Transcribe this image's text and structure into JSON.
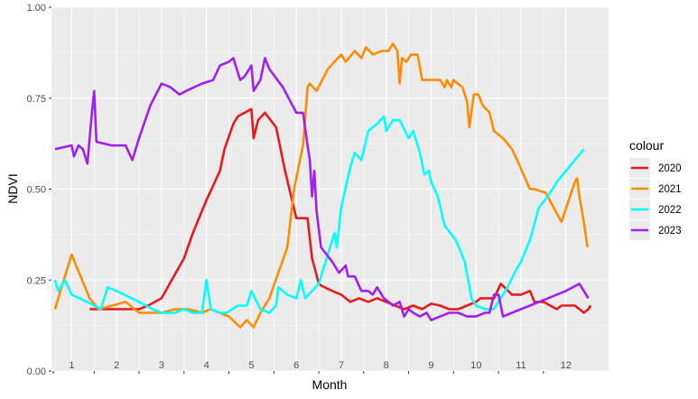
{
  "chart_data": {
    "type": "line",
    "xlabel": "Month",
    "ylabel": "NDVI",
    "xlim": [
      0.55,
      12.95
    ],
    "ylim": [
      0,
      1
    ],
    "y_ticks": [
      0.0,
      0.25,
      0.5,
      0.75,
      1.0
    ],
    "y_tick_labels": [
      "0.00",
      "0.25",
      "0.50",
      "0.75",
      "1.00"
    ],
    "x_ticks": [
      1,
      2,
      3,
      4,
      5,
      6,
      7,
      8,
      9,
      10,
      11,
      12
    ],
    "x_tick_labels": [
      "1",
      "2",
      "3",
      "4",
      "5",
      "6",
      "7",
      "8",
      "9",
      "10",
      "11",
      "12"
    ],
    "grid": true,
    "legend": {
      "title": "colour",
      "position": "right"
    },
    "series": [
      {
        "name": "2020",
        "color": "#E41A1C",
        "points": [
          [
            1.4,
            0.17
          ],
          [
            2.0,
            0.17
          ],
          [
            2.5,
            0.17
          ],
          [
            2.7,
            0.18
          ],
          [
            3.0,
            0.2
          ],
          [
            3.5,
            0.31
          ],
          [
            3.7,
            0.38
          ],
          [
            4.0,
            0.47
          ],
          [
            4.3,
            0.55
          ],
          [
            4.4,
            0.61
          ],
          [
            4.6,
            0.68
          ],
          [
            4.7,
            0.7
          ],
          [
            5.0,
            0.72
          ],
          [
            5.05,
            0.64
          ],
          [
            5.15,
            0.69
          ],
          [
            5.3,
            0.71
          ],
          [
            5.55,
            0.67
          ],
          [
            5.75,
            0.55
          ],
          [
            6.0,
            0.42
          ],
          [
            6.25,
            0.42
          ],
          [
            6.35,
            0.31
          ],
          [
            6.5,
            0.24
          ],
          [
            6.55,
            0.235
          ],
          [
            6.8,
            0.22
          ],
          [
            7.0,
            0.21
          ],
          [
            7.2,
            0.19
          ],
          [
            7.4,
            0.2
          ],
          [
            7.6,
            0.19
          ],
          [
            7.8,
            0.2
          ],
          [
            8.0,
            0.19
          ],
          [
            8.2,
            0.18
          ],
          [
            8.4,
            0.17
          ],
          [
            8.6,
            0.18
          ],
          [
            8.8,
            0.17
          ],
          [
            9.0,
            0.185
          ],
          [
            9.2,
            0.18
          ],
          [
            9.4,
            0.17
          ],
          [
            9.6,
            0.17
          ],
          [
            9.8,
            0.18
          ],
          [
            10.0,
            0.19
          ],
          [
            10.1,
            0.2
          ],
          [
            10.25,
            0.2
          ],
          [
            10.4,
            0.2
          ],
          [
            10.55,
            0.24
          ],
          [
            10.8,
            0.21
          ],
          [
            11.0,
            0.21
          ],
          [
            11.2,
            0.22
          ],
          [
            11.3,
            0.19
          ],
          [
            11.5,
            0.19
          ],
          [
            11.65,
            0.18
          ],
          [
            11.8,
            0.17
          ],
          [
            11.9,
            0.18
          ],
          [
            12.0,
            0.18
          ],
          [
            12.2,
            0.18
          ],
          [
            12.3,
            0.17
          ],
          [
            12.4,
            0.16
          ],
          [
            12.5,
            0.17
          ],
          [
            12.55,
            0.18
          ]
        ]
      },
      {
        "name": "2021",
        "color": "#FF8C00",
        "points": [
          [
            0.63,
            0.17
          ],
          [
            0.8,
            0.24
          ],
          [
            1.0,
            0.32
          ],
          [
            1.2,
            0.26
          ],
          [
            1.4,
            0.2
          ],
          [
            1.6,
            0.17
          ],
          [
            1.9,
            0.18
          ],
          [
            2.2,
            0.19
          ],
          [
            2.5,
            0.16
          ],
          [
            2.8,
            0.16
          ],
          [
            3.0,
            0.16
          ],
          [
            3.3,
            0.17
          ],
          [
            3.6,
            0.17
          ],
          [
            3.9,
            0.16
          ],
          [
            4.1,
            0.17
          ],
          [
            4.3,
            0.16
          ],
          [
            4.5,
            0.15
          ],
          [
            4.75,
            0.12
          ],
          [
            4.9,
            0.14
          ],
          [
            5.05,
            0.12
          ],
          [
            5.2,
            0.16
          ],
          [
            5.4,
            0.2
          ],
          [
            5.6,
            0.27
          ],
          [
            5.8,
            0.34
          ],
          [
            5.95,
            0.5
          ],
          [
            6.15,
            0.62
          ],
          [
            6.25,
            0.78
          ],
          [
            6.3,
            0.79
          ],
          [
            6.45,
            0.77
          ],
          [
            6.7,
            0.83
          ],
          [
            7.0,
            0.87
          ],
          [
            7.1,
            0.85
          ],
          [
            7.3,
            0.88
          ],
          [
            7.45,
            0.86
          ],
          [
            7.55,
            0.89
          ],
          [
            7.7,
            0.87
          ],
          [
            7.9,
            0.88
          ],
          [
            8.05,
            0.88
          ],
          [
            8.15,
            0.9
          ],
          [
            8.25,
            0.88
          ],
          [
            8.3,
            0.79
          ],
          [
            8.35,
            0.86
          ],
          [
            8.45,
            0.85
          ],
          [
            8.55,
            0.87
          ],
          [
            8.7,
            0.87
          ],
          [
            8.8,
            0.8
          ],
          [
            9.2,
            0.8
          ],
          [
            9.3,
            0.78
          ],
          [
            9.35,
            0.8
          ],
          [
            9.45,
            0.78
          ],
          [
            9.5,
            0.8
          ],
          [
            9.7,
            0.78
          ],
          [
            9.8,
            0.74
          ],
          [
            9.85,
            0.67
          ],
          [
            9.95,
            0.76
          ],
          [
            10.05,
            0.76
          ],
          [
            10.15,
            0.73
          ],
          [
            10.3,
            0.71
          ],
          [
            10.4,
            0.66
          ],
          [
            10.5,
            0.65
          ],
          [
            10.6,
            0.64
          ],
          [
            10.8,
            0.61
          ],
          [
            10.95,
            0.57
          ],
          [
            11.2,
            0.5
          ],
          [
            11.3,
            0.5
          ],
          [
            11.55,
            0.49
          ],
          [
            11.9,
            0.41
          ],
          [
            12.2,
            0.52
          ],
          [
            12.25,
            0.53
          ],
          [
            12.3,
            0.48
          ],
          [
            12.4,
            0.41
          ],
          [
            12.48,
            0.34
          ]
        ]
      },
      {
        "name": "2022",
        "color": "#00FFFF",
        "points": [
          [
            0.63,
            0.25
          ],
          [
            0.7,
            0.22
          ],
          [
            0.85,
            0.25
          ],
          [
            1.0,
            0.21
          ],
          [
            1.35,
            0.19
          ],
          [
            1.65,
            0.17
          ],
          [
            1.8,
            0.23
          ],
          [
            2.0,
            0.22
          ],
          [
            2.5,
            0.19
          ],
          [
            2.8,
            0.17
          ],
          [
            3.0,
            0.16
          ],
          [
            3.3,
            0.16
          ],
          [
            3.5,
            0.17
          ],
          [
            3.7,
            0.16
          ],
          [
            3.9,
            0.16
          ],
          [
            4.0,
            0.25
          ],
          [
            4.1,
            0.17
          ],
          [
            4.3,
            0.16
          ],
          [
            4.45,
            0.16
          ],
          [
            4.7,
            0.18
          ],
          [
            4.9,
            0.18
          ],
          [
            5.0,
            0.22
          ],
          [
            5.2,
            0.17
          ],
          [
            5.4,
            0.16
          ],
          [
            5.55,
            0.18
          ],
          [
            5.6,
            0.23
          ],
          [
            5.8,
            0.21
          ],
          [
            6.0,
            0.2
          ],
          [
            6.1,
            0.25
          ],
          [
            6.2,
            0.2
          ],
          [
            6.5,
            0.24
          ],
          [
            6.7,
            0.32
          ],
          [
            6.85,
            0.38
          ],
          [
            6.9,
            0.34
          ],
          [
            7.0,
            0.45
          ],
          [
            7.2,
            0.56
          ],
          [
            7.3,
            0.6
          ],
          [
            7.45,
            0.58
          ],
          [
            7.6,
            0.66
          ],
          [
            7.8,
            0.68
          ],
          [
            7.95,
            0.7
          ],
          [
            8.0,
            0.66
          ],
          [
            8.15,
            0.69
          ],
          [
            8.3,
            0.69
          ],
          [
            8.5,
            0.64
          ],
          [
            8.6,
            0.66
          ],
          [
            8.75,
            0.6
          ],
          [
            8.85,
            0.54
          ],
          [
            8.95,
            0.55
          ],
          [
            9.0,
            0.52
          ],
          [
            9.15,
            0.48
          ],
          [
            9.3,
            0.4
          ],
          [
            9.55,
            0.36
          ],
          [
            9.75,
            0.3
          ],
          [
            9.9,
            0.2
          ],
          [
            10.0,
            0.18
          ],
          [
            10.2,
            0.17
          ],
          [
            10.4,
            0.17
          ],
          [
            10.55,
            0.2
          ],
          [
            10.7,
            0.23
          ],
          [
            10.9,
            0.28
          ],
          [
            11.0,
            0.3
          ],
          [
            11.2,
            0.36
          ],
          [
            11.4,
            0.45
          ],
          [
            11.6,
            0.48
          ],
          [
            11.8,
            0.52
          ],
          [
            12.0,
            0.55
          ],
          [
            12.2,
            0.58
          ],
          [
            12.4,
            0.61
          ]
        ]
      },
      {
        "name": "2023",
        "color": "#A020F0",
        "points": [
          [
            0.63,
            0.61
          ],
          [
            1.0,
            0.62
          ],
          [
            1.05,
            0.59
          ],
          [
            1.15,
            0.62
          ],
          [
            1.25,
            0.61
          ],
          [
            1.35,
            0.57
          ],
          [
            1.45,
            0.71
          ],
          [
            1.5,
            0.77
          ],
          [
            1.55,
            0.63
          ],
          [
            1.9,
            0.62
          ],
          [
            2.2,
            0.62
          ],
          [
            2.35,
            0.58
          ],
          [
            2.5,
            0.64
          ],
          [
            2.75,
            0.73
          ],
          [
            3.0,
            0.79
          ],
          [
            3.2,
            0.78
          ],
          [
            3.4,
            0.76
          ],
          [
            3.55,
            0.77
          ],
          [
            3.9,
            0.79
          ],
          [
            4.15,
            0.8
          ],
          [
            4.3,
            0.84
          ],
          [
            4.5,
            0.85
          ],
          [
            4.6,
            0.86
          ],
          [
            4.75,
            0.8
          ],
          [
            4.85,
            0.81
          ],
          [
            5.0,
            0.84
          ],
          [
            5.05,
            0.77
          ],
          [
            5.2,
            0.8
          ],
          [
            5.3,
            0.86
          ],
          [
            5.4,
            0.83
          ],
          [
            5.7,
            0.78
          ],
          [
            6.0,
            0.71
          ],
          [
            6.15,
            0.71
          ],
          [
            6.25,
            0.62
          ],
          [
            6.3,
            0.58
          ],
          [
            6.35,
            0.48
          ],
          [
            6.4,
            0.55
          ],
          [
            6.45,
            0.44
          ],
          [
            6.55,
            0.34
          ],
          [
            6.8,
            0.3
          ],
          [
            6.95,
            0.27
          ],
          [
            7.1,
            0.29
          ],
          [
            7.15,
            0.26
          ],
          [
            7.3,
            0.26
          ],
          [
            7.45,
            0.22
          ],
          [
            7.6,
            0.22
          ],
          [
            7.7,
            0.21
          ],
          [
            7.8,
            0.23
          ],
          [
            7.95,
            0.2
          ],
          [
            8.05,
            0.19
          ],
          [
            8.15,
            0.18
          ],
          [
            8.3,
            0.19
          ],
          [
            8.4,
            0.15
          ],
          [
            8.5,
            0.17
          ],
          [
            8.6,
            0.16
          ],
          [
            8.75,
            0.15
          ],
          [
            8.9,
            0.16
          ],
          [
            9.0,
            0.14
          ],
          [
            9.2,
            0.15
          ],
          [
            9.4,
            0.16
          ],
          [
            9.6,
            0.16
          ],
          [
            9.8,
            0.15
          ],
          [
            10.0,
            0.15
          ],
          [
            10.2,
            0.16
          ],
          [
            10.3,
            0.16
          ],
          [
            10.4,
            0.21
          ],
          [
            10.5,
            0.21
          ],
          [
            10.6,
            0.15
          ],
          [
            10.8,
            0.16
          ],
          [
            11.2,
            0.18
          ],
          [
            11.6,
            0.2
          ],
          [
            12.0,
            0.22
          ],
          [
            12.3,
            0.24
          ],
          [
            12.35,
            0.23
          ],
          [
            12.45,
            0.21
          ],
          [
            12.5,
            0.2
          ]
        ]
      }
    ]
  }
}
